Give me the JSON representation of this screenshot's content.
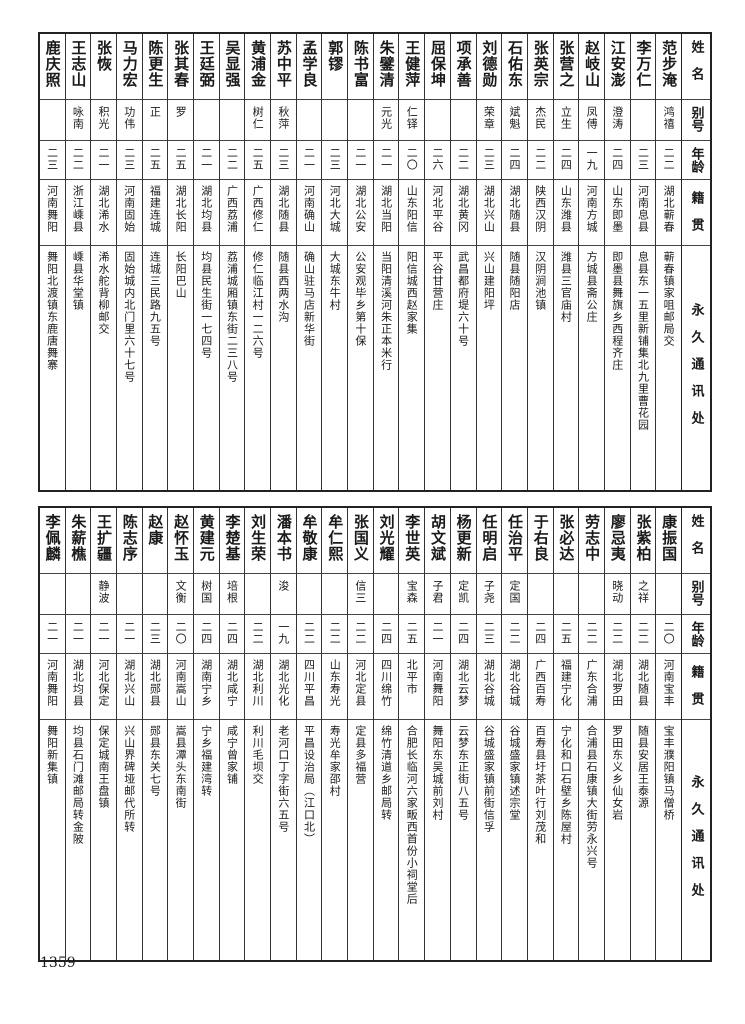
{
  "headers": {
    "name": "姓名",
    "alias": "别号",
    "age": "年龄",
    "origin": "籍贯",
    "address": "永久通讯处"
  },
  "tables": [
    {
      "rows": [
        {
          "name": "范步淹",
          "alias": "鸿禧",
          "age": "二二",
          "origin": "湖北蕲春",
          "address": "蕲春镇家咀邮局交"
        },
        {
          "name": "李万仁",
          "alias": "",
          "age": "二三",
          "origin": "河南息县",
          "address": "息县东一五里新铺集北九里曹花园"
        },
        {
          "name": "江安澎",
          "alias": "澄涛",
          "age": "二四",
          "origin": "山东即墨",
          "address": "即墨县舞旗乡西程齐庄"
        },
        {
          "name": "赵岐山",
          "alias": "凤傅",
          "age": "一九",
          "origin": "河南方城",
          "address": "方城县斋公庄"
        },
        {
          "name": "张营之",
          "alias": "立生",
          "age": "二四",
          "origin": "山东潍县",
          "address": "潍县三官庙村"
        },
        {
          "name": "张英宗",
          "alias": "杰民",
          "age": "二二",
          "origin": "陕西汉阴",
          "address": "汉阴涧池镇"
        },
        {
          "name": "石佑东",
          "alias": "斌魁",
          "age": "二四",
          "origin": "湖北随县",
          "address": "随县随阳店"
        },
        {
          "name": "刘德勋",
          "alias": "荣章",
          "age": "二三",
          "origin": "湖北兴山",
          "address": "兴山建阳坪"
        },
        {
          "name": "项承善",
          "alias": "",
          "age": "二二",
          "origin": "湖北黄冈",
          "address": "武昌都府堤六十号"
        },
        {
          "name": "屈保坤",
          "alias": "",
          "age": "二六",
          "origin": "河北平谷",
          "address": "平谷甘营庄"
        },
        {
          "name": "王健萍",
          "alias": "仁铎",
          "age": "二〇",
          "origin": "山东阳信",
          "address": "阳信城西赵家集"
        },
        {
          "name": "朱鐾清",
          "alias": "元光",
          "age": "二一",
          "origin": "湖北当阳",
          "address": "当阳清溪河朱正本米行"
        },
        {
          "name": "陈书富",
          "alias": "",
          "age": "二一",
          "origin": "湖北公安",
          "address": "公安观毕乡第十保"
        },
        {
          "name": "郭镠",
          "alias": "",
          "age": "二三",
          "origin": "河北大城",
          "address": "大城东牛村"
        },
        {
          "name": "孟学良",
          "alias": "",
          "age": "二一",
          "origin": "河南确山",
          "address": "确山驻马店新华街"
        },
        {
          "name": "苏中平",
          "alias": "秋萍",
          "age": "二三",
          "origin": "湖北随县",
          "address": "随县西两水沟"
        },
        {
          "name": "黄浦金",
          "alias": "树仁",
          "age": "二五",
          "origin": "广西修仁",
          "address": "修仁临江村一二六号"
        },
        {
          "name": "吴显强",
          "alias": "",
          "age": "二二",
          "origin": "广西荔浦",
          "address": "荔浦城厢镇东街二三八号"
        },
        {
          "name": "王廷弼",
          "alias": "",
          "age": "二一",
          "origin": "湖北均县",
          "address": "均县民生街一七四号"
        },
        {
          "name": "张其春",
          "alias": "罗",
          "age": "二五",
          "origin": "湖北长阳",
          "address": "长阳巴山"
        },
        {
          "name": "陈更生",
          "alias": "正",
          "age": "二五",
          "origin": "福建连城",
          "address": "连城三民路九五号"
        },
        {
          "name": "马力宏",
          "alias": "功伟",
          "age": "二三",
          "origin": "河南固始",
          "address": "固始城内北门里六十七号"
        },
        {
          "name": "张恢",
          "alias": "积光",
          "age": "二一",
          "origin": "湖北浠水",
          "address": "浠水舵背柳邮交"
        },
        {
          "name": "王志山",
          "alias": "咏南",
          "age": "二二",
          "origin": "浙江嵊县",
          "address": "嵊县华堂镇"
        },
        {
          "name": "鹿庆照",
          "alias": "",
          "age": "二三",
          "origin": "河南舞阳",
          "address": "舞阳北渡镇东鹿唐舞寨"
        }
      ]
    },
    {
      "rows": [
        {
          "name": "康振国",
          "alias": "",
          "age": "二〇",
          "origin": "河南宝丰",
          "address": "宝丰濮阳镇马僧桥"
        },
        {
          "name": "张紫柏",
          "alias": "之祥",
          "age": "二二",
          "origin": "湖北随县",
          "address": "随县安居王泰源"
        },
        {
          "name": "廖忌夷",
          "alias": "晓动",
          "age": "二二",
          "origin": "湖北罗田",
          "address": "罗田东义乡仙女岩"
        },
        {
          "name": "劳志中",
          "alias": "",
          "age": "二二",
          "origin": "广东合浦",
          "address": "合浦县石康镇大街劳永兴号"
        },
        {
          "name": "张必达",
          "alias": "",
          "age": "二五",
          "origin": "福建宁化",
          "address": "宁化和口石壁乡陈屋村"
        },
        {
          "name": "于右良",
          "alias": "",
          "age": "二四",
          "origin": "广西百寿",
          "address": "百寿县圩茶叶行刘茂和"
        },
        {
          "name": "任治平",
          "alias": "定国",
          "age": "二二",
          "origin": "湖北谷城",
          "address": "谷城盛家镇述宗堂"
        },
        {
          "name": "任明启",
          "alias": "子尧",
          "age": "二三",
          "origin": "湖北谷城",
          "address": "谷城盛家镇前街信孚"
        },
        {
          "name": "杨更新",
          "alias": "定凯",
          "age": "二四",
          "origin": "湖北云梦",
          "address": "云梦东正街八五号"
        },
        {
          "name": "胡文斌",
          "alias": "子君",
          "age": "二一",
          "origin": "河南舞阳",
          "address": "舞阳东吴城前刘村"
        },
        {
          "name": "李世英",
          "alias": "宝森",
          "age": "二五",
          "origin": "北平市",
          "address": "合肥长临河六家畈西首份小祠堂后"
        },
        {
          "name": "刘光耀",
          "alias": "",
          "age": "二四",
          "origin": "四川绵竹",
          "address": "绵竹清道乡邮局转"
        },
        {
          "name": "张国义",
          "alias": "信三",
          "age": "二二",
          "origin": "河北定县",
          "address": "定县多福营"
        },
        {
          "name": "牟仁熙",
          "alias": "",
          "age": "二二",
          "origin": "山东寿光",
          "address": "寿光牟家邵村"
        },
        {
          "name": "牟敬康",
          "alias": "",
          "age": "二二",
          "origin": "四川平昌",
          "address": "平昌设治局（江口北）"
        },
        {
          "name": "潘本书",
          "alias": "浚",
          "age": "一九",
          "origin": "湖北光化",
          "address": "老河口丁字街六五号"
        },
        {
          "name": "刘生荣",
          "alias": "",
          "age": "二二",
          "origin": "湖北利川",
          "address": "利川毛坝交"
        },
        {
          "name": "李楚基",
          "alias": "培根",
          "age": "二四",
          "origin": "湖北咸宁",
          "address": "咸宁曾家铺"
        },
        {
          "name": "黄建元",
          "alias": "树国",
          "age": "二四",
          "origin": "湖南宁乡",
          "address": "宁乡福建湾转"
        },
        {
          "name": "赵怀玉",
          "alias": "文衡",
          "age": "二〇",
          "origin": "河南嵩山",
          "address": "嵩县潭头东南街"
        },
        {
          "name": "赵康",
          "alias": "",
          "age": "二三",
          "origin": "湖北郧县",
          "address": "郧县东关七号"
        },
        {
          "name": "陈志序",
          "alias": "",
          "age": "二一",
          "origin": "湖北兴山",
          "address": "兴山界碑垭邮代所转"
        },
        {
          "name": "王扩疆",
          "alias": "静波",
          "age": "二一",
          "origin": "河北保定",
          "address": "保定城南王盘镇"
        },
        {
          "name": "朱薪樵",
          "alias": "",
          "age": "二一",
          "origin": "湖北均县",
          "address": "均县石门滩邮局转金陂"
        },
        {
          "name": "李佩麟",
          "alias": "",
          "age": "二一",
          "origin": "河南舞阳",
          "address": "舞阳新集镇"
        }
      ]
    }
  ],
  "page_number": "1359"
}
